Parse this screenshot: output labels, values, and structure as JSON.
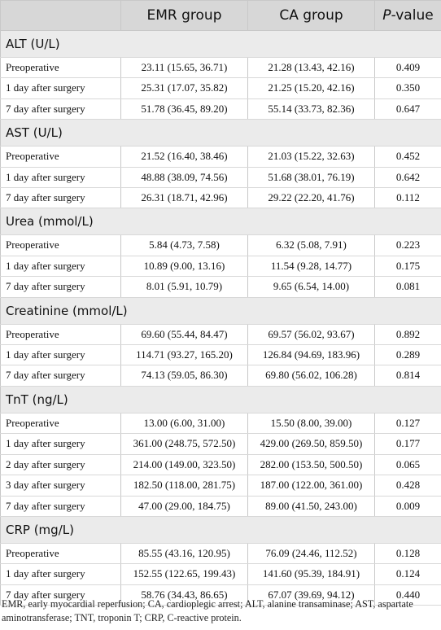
{
  "header": {
    "col1": "",
    "col2": "EMR group",
    "col3": "CA group",
    "col4_p": "P",
    "col4_rest": "-value"
  },
  "sections": [
    {
      "title": "ALT (U/L)",
      "rows": [
        {
          "label": "Preoperative",
          "emr": "23.11 (15.65, 36.71)",
          "ca": "21.28 (13.43, 42.16)",
          "p": "0.409"
        },
        {
          "label": "1 day after surgery",
          "emr": "25.31 (17.07, 35.82)",
          "ca": "21.25 (15.20, 42.16)",
          "p": "0.350"
        },
        {
          "label": "7 day after surgery",
          "emr": "51.78 (36.45, 89.20)",
          "ca": "55.14 (33.73, 82.36)",
          "p": "0.647"
        }
      ]
    },
    {
      "title": "AST (U/L)",
      "rows": [
        {
          "label": "Preoperative",
          "emr": "21.52 (16.40, 38.46)",
          "ca": "21.03 (15.22, 32.63)",
          "p": "0.452"
        },
        {
          "label": "1 day after surgery",
          "emr": "48.88 (38.09, 74.56)",
          "ca": "51.68 (38.01, 76.19)",
          "p": "0.642"
        },
        {
          "label": "7 day after surgery",
          "emr": "26.31 (18.71, 42.96)",
          "ca": "29.22 (22.20, 41.76)",
          "p": "0.112"
        }
      ]
    },
    {
      "title": "Urea (mmol/L)",
      "rows": [
        {
          "label": "Preoperative",
          "emr": "5.84 (4.73, 7.58)",
          "ca": "6.32 (5.08, 7.91)",
          "p": "0.223"
        },
        {
          "label": "1 day after surgery",
          "emr": "10.89 (9.00, 13.16)",
          "ca": "11.54 (9.28, 14.77)",
          "p": "0.175"
        },
        {
          "label": "7 day after surgery",
          "emr": "8.01 (5.91, 10.79)",
          "ca": "9.65 (6.54, 14.00)",
          "p": "0.081"
        }
      ]
    },
    {
      "title": "Creatinine (mmol/L)",
      "rows": [
        {
          "label": "Preoperative",
          "emr": "69.60 (55.44, 84.47)",
          "ca": "69.57 (56.02, 93.67)",
          "p": "0.892"
        },
        {
          "label": "1 day after surgery",
          "emr": "114.71 (93.27, 165.20)",
          "ca": "126.84 (94.69, 183.96)",
          "p": "0.289"
        },
        {
          "label": "7 day after surgery",
          "emr": "74.13 (59.05, 86.30)",
          "ca": "69.80 (56.02, 106.28)",
          "p": "0.814"
        }
      ]
    },
    {
      "title": "TnT (ng/L)",
      "rows": [
        {
          "label": "Preoperative",
          "emr": "13.00 (6.00, 31.00)",
          "ca": "15.50 (8.00, 39.00)",
          "p": "0.127"
        },
        {
          "label": "1 day after surgery",
          "emr": "361.00 (248.75, 572.50)",
          "ca": "429.00 (269.50, 859.50)",
          "p": "0.177"
        },
        {
          "label": "2 day after surgery",
          "emr": "214.00 (149.00, 323.50)",
          "ca": "282.00 (153.50, 500.50)",
          "p": "0.065"
        },
        {
          "label": "3 day after surgery",
          "emr": "182.50 (118.00, 281.75)",
          "ca": "187.00 (122.00, 361.00)",
          "p": "0.428"
        },
        {
          "label": "7 day after surgery",
          "emr": "47.00 (29.00, 184.75)",
          "ca": "89.00 (41.50, 243.00)",
          "p": "0.009"
        }
      ]
    },
    {
      "title": "CRP (mg/L)",
      "rows": [
        {
          "label": "Preoperative",
          "emr": "85.55 (43.16, 120.95)",
          "ca": "76.09 (24.46, 112.52)",
          "p": "0.128"
        },
        {
          "label": "1 day after surgery",
          "emr": "152.55 (122.65, 199.43)",
          "ca": "141.60 (95.39, 184.91)",
          "p": "0.124"
        },
        {
          "label": "7 day after surgery",
          "emr": "58.76 (34.43, 86.65)",
          "ca": "67.07 (39.69, 94.12)",
          "p": "0.440"
        }
      ]
    }
  ],
  "footnote": "EMR, early myocardial reperfusion; CA, cardioplegic arrest; ALT, alanine transaminase; AST, aspartate aminotransferase; TNT, troponin T; CRP, C-reactive protein."
}
